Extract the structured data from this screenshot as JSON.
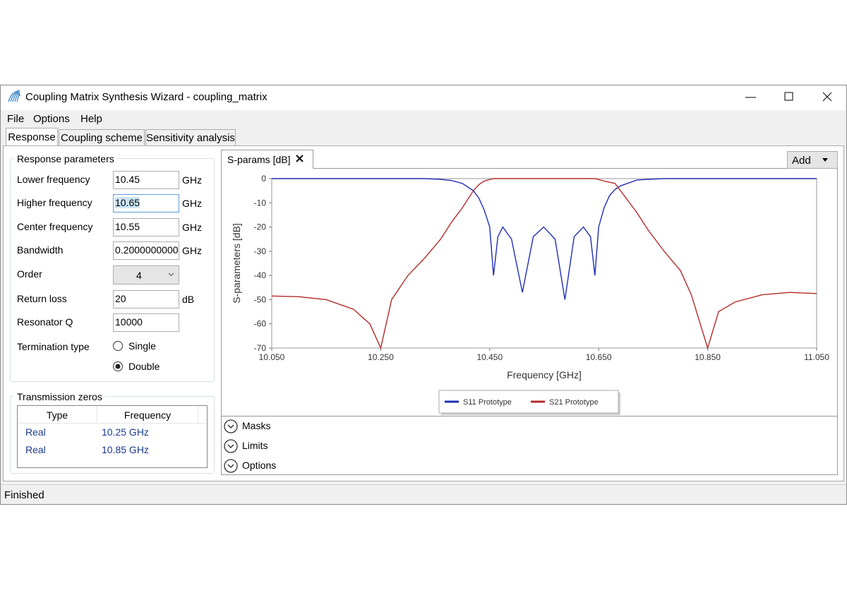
{
  "window": {
    "title": "Coupling Matrix Synthesis Wizard - coupling_matrix"
  },
  "menu": [
    "File",
    "Options",
    "Help"
  ],
  "tabs": [
    {
      "label": "Response",
      "active": true
    },
    {
      "label": "Coupling scheme",
      "active": false
    },
    {
      "label": "Sensitivity analysis",
      "active": false
    }
  ],
  "response_parameters": {
    "title": "Response parameters",
    "fields": [
      {
        "label": "Lower frequency",
        "value": "10.45",
        "unit": "GHz"
      },
      {
        "label": "Higher frequency",
        "value": "10.65",
        "unit": "GHz",
        "selected": true
      },
      {
        "label": "Center frequency",
        "value": "10.55",
        "unit": "GHz"
      },
      {
        "label": "Bandwidth",
        "value": "0.2000000000",
        "unit": "GHz"
      },
      {
        "label": "Order",
        "value": "4",
        "kind": "select"
      },
      {
        "label": "Return loss",
        "value": "20",
        "unit": "dB"
      },
      {
        "label": "Resonator Q",
        "value": "10000"
      }
    ],
    "termination": {
      "label": "Termination type",
      "options": [
        {
          "label": "Single",
          "checked": false
        },
        {
          "label": "Double",
          "checked": true
        }
      ]
    }
  },
  "transmission_zeros": {
    "title": "Transmission zeros",
    "columns": [
      "Type",
      "Frequency"
    ],
    "rows": [
      [
        "Real",
        "10.25 GHz"
      ],
      [
        "Real",
        "10.85 GHz"
      ]
    ]
  },
  "plot_tab": "S-params [dB]",
  "add_button": "Add",
  "sections": [
    "Masks",
    "Limits",
    "Options"
  ],
  "status": "Finished",
  "chart_data": {
    "type": "line",
    "xlabel": "Frequency [GHz]",
    "ylabel": "S-parameters [dB]",
    "x": [
      10.05,
      10.1,
      10.15,
      10.2,
      10.23,
      10.25,
      10.27,
      10.3,
      10.33,
      10.36,
      10.38,
      10.4,
      10.42,
      10.43,
      10.44,
      10.45,
      10.457,
      10.465,
      10.474,
      10.49,
      10.51,
      10.53,
      10.549,
      10.57,
      10.588,
      10.605,
      10.622,
      10.635,
      10.643,
      10.65,
      10.66,
      10.67,
      10.68,
      10.69,
      10.72,
      10.74,
      10.77,
      10.8,
      10.82,
      10.85,
      10.87,
      10.9,
      10.95,
      11.0,
      11.05
    ],
    "series": [
      {
        "name": "S11 Prototype",
        "color": "#1f2db5",
        "values": [
          0,
          0,
          0,
          0,
          0,
          0,
          0,
          0,
          0,
          -0.3,
          -0.8,
          -2,
          -5,
          -8,
          -13,
          -20,
          -40,
          -24,
          -20,
          -25,
          -47,
          -24,
          -20,
          -25,
          -50,
          -24,
          -20,
          -24,
          -40,
          -20,
          -12,
          -7,
          -4.5,
          -3,
          -0.6,
          -0.3,
          0,
          0,
          0,
          0,
          0,
          0,
          0,
          0,
          0
        ]
      },
      {
        "name": "S21 Prototype",
        "color": "#b52a2a",
        "values": [
          -48.5,
          -48.8,
          -50,
          -54,
          -60,
          -70,
          -50,
          -40,
          -33,
          -25,
          -18,
          -12,
          -5,
          -2.5,
          -1,
          -0.4,
          0,
          0,
          0,
          0,
          0,
          0,
          0,
          0,
          0,
          0,
          0,
          0,
          0,
          -0.4,
          -1,
          -1.5,
          -2,
          -5,
          -14,
          -21,
          -30,
          -38,
          -48,
          -70,
          -55,
          -51,
          -48,
          -47,
          -47.5
        ]
      }
    ],
    "xlim": [
      10.05,
      11.05
    ],
    "ylim": [
      -70,
      0
    ],
    "xticks": [
      {
        "value": 10.05,
        "label": "10.050"
      },
      {
        "value": 10.25,
        "label": "10.250"
      },
      {
        "value": 10.45,
        "label": "10.450"
      },
      {
        "value": 10.65,
        "label": "10.650"
      },
      {
        "value": 10.85,
        "label": "10.850"
      },
      {
        "value": 11.05,
        "label": "11.050"
      }
    ],
    "yticks": [
      0,
      -10,
      -20,
      -30,
      -40,
      -50,
      -60,
      -70
    ],
    "grid": false
  }
}
